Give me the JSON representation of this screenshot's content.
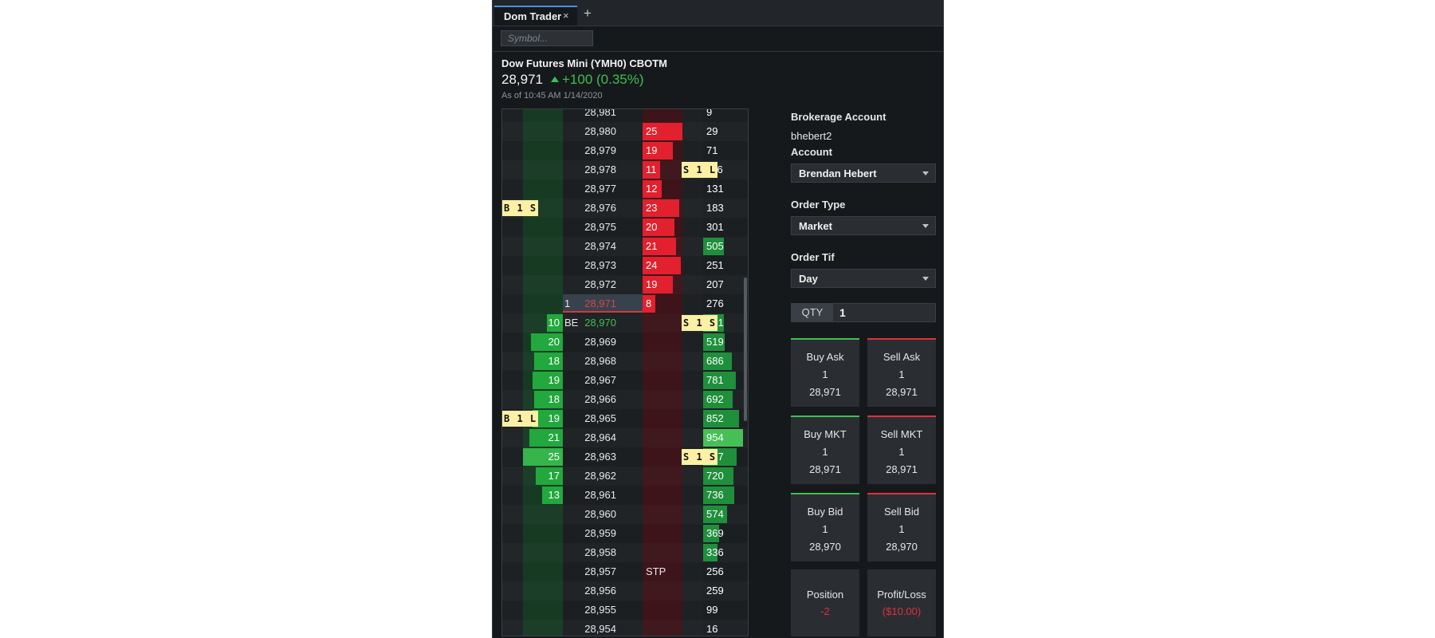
{
  "tabs": [
    {
      "label": "Dom Trader",
      "close": "×"
    }
  ],
  "tab_add": "+",
  "search": {
    "placeholder": "Symbol..."
  },
  "instrument": {
    "name": "Dow Futures Mini (YMH0) CBOTM",
    "price": "28,971",
    "change": "+100 (0.35%)",
    "as_of": "As of 10:45 AM 1/14/2020"
  },
  "colors": {
    "up": "#3fbf4f",
    "down": "#e0303a",
    "tag": "#fbf0a4"
  },
  "ladder": {
    "rows": [
      {
        "price": "28,981",
        "bid_qty": "",
        "ask_qty": "",
        "volume": "9",
        "vol_frac": 0.0,
        "ask_frac": 0
      },
      {
        "price": "28,980",
        "bid_qty": "",
        "ask_qty": "25",
        "volume": "29",
        "vol_frac": 0.0,
        "ask_frac": 1.0
      },
      {
        "price": "28,979",
        "bid_qty": "",
        "ask_qty": "19",
        "volume": "71",
        "vol_frac": 0.0,
        "ask_frac": 0.76
      },
      {
        "price": "28,978",
        "bid_qty": "",
        "ask_qty": "11",
        "volume": "116",
        "vol_frac": 0.0,
        "ask_frac": 0.44,
        "right_tag": "S 1 L"
      },
      {
        "price": "28,977",
        "bid_qty": "",
        "ask_qty": "12",
        "volume": "131",
        "vol_frac": 0.0,
        "ask_frac": 0.48
      },
      {
        "price": "28,976",
        "bid_qty": "",
        "ask_qty": "23",
        "volume": "183",
        "vol_frac": 0.0,
        "ask_frac": 0.92,
        "left_tag": "B 1 S"
      },
      {
        "price": "28,975",
        "bid_qty": "",
        "ask_qty": "20",
        "volume": "301",
        "vol_frac": 0.0,
        "ask_frac": 0.8
      },
      {
        "price": "28,974",
        "bid_qty": "",
        "ask_qty": "21",
        "volume": "505",
        "vol_frac": 0.52,
        "ask_frac": 0.84
      },
      {
        "price": "28,973",
        "bid_qty": "",
        "ask_qty": "24",
        "volume": "251",
        "vol_frac": 0.0,
        "ask_frac": 0.96
      },
      {
        "price": "28,972",
        "bid_qty": "",
        "ask_qty": "19",
        "volume": "207",
        "vol_frac": 0.0,
        "ask_frac": 0.76
      },
      {
        "price": "28,971",
        "bid_qty": "",
        "ask_qty": "8",
        "volume": "276",
        "vol_frac": 0.0,
        "ask_frac": 0.32,
        "position_qty": "1",
        "current": true
      },
      {
        "price": "28,970",
        "bid_qty": "10",
        "ask_qty": "",
        "volume": "501",
        "vol_frac": 0.52,
        "bid_frac": 0.4,
        "marker": "BE",
        "last": true,
        "right_tag": "S 1 S"
      },
      {
        "price": "28,969",
        "bid_qty": "20",
        "ask_qty": "",
        "volume": "519",
        "vol_frac": 0.54,
        "bid_frac": 0.8
      },
      {
        "price": "28,968",
        "bid_qty": "18",
        "ask_qty": "",
        "volume": "686",
        "vol_frac": 0.72,
        "bid_frac": 0.72
      },
      {
        "price": "28,967",
        "bid_qty": "19",
        "ask_qty": "",
        "volume": "781",
        "vol_frac": 0.82,
        "bid_frac": 0.76
      },
      {
        "price": "28,966",
        "bid_qty": "18",
        "ask_qty": "",
        "volume": "692",
        "vol_frac": 0.73,
        "bid_frac": 0.72
      },
      {
        "price": "28,965",
        "bid_qty": "19",
        "ask_qty": "",
        "volume": "852",
        "vol_frac": 0.89,
        "bid_frac": 0.76,
        "left_tag": "B 1 L"
      },
      {
        "price": "28,964",
        "bid_qty": "21",
        "ask_qty": "",
        "volume": "954",
        "vol_frac": 1.0,
        "bid_frac": 0.84
      },
      {
        "price": "28,963",
        "bid_qty": "25",
        "ask_qty": "",
        "volume": "797",
        "vol_frac": 0.84,
        "bid_frac": 1.0,
        "right_tag": "S 1 S"
      },
      {
        "price": "28,962",
        "bid_qty": "17",
        "ask_qty": "",
        "volume": "720",
        "vol_frac": 0.75,
        "bid_frac": 0.68
      },
      {
        "price": "28,961",
        "bid_qty": "13",
        "ask_qty": "",
        "volume": "736",
        "vol_frac": 0.77,
        "bid_frac": 0.52
      },
      {
        "price": "28,960",
        "bid_qty": "",
        "ask_qty": "",
        "volume": "574",
        "vol_frac": 0.6
      },
      {
        "price": "28,959",
        "bid_qty": "",
        "ask_qty": "",
        "volume": "369",
        "vol_frac": 0.39
      },
      {
        "price": "28,958",
        "bid_qty": "",
        "ask_qty": "",
        "volume": "336",
        "vol_frac": 0.35
      },
      {
        "price": "28,957",
        "bid_qty": "",
        "ask_qty": "",
        "volume": "256",
        "vol_frac": 0.0,
        "stop": "STP"
      },
      {
        "price": "28,956",
        "bid_qty": "",
        "ask_qty": "",
        "volume": "259",
        "vol_frac": 0.0
      },
      {
        "price": "28,955",
        "bid_qty": "",
        "ask_qty": "",
        "volume": "99",
        "vol_frac": 0.0
      },
      {
        "price": "28,954",
        "bid_qty": "",
        "ask_qty": "",
        "volume": "16",
        "vol_frac": 0.0
      }
    ]
  },
  "panel": {
    "brokerage_label": "Brokerage Account",
    "brokerage_value": "bhebert2",
    "account_label": "Account",
    "account_value": "Brendan Hebert",
    "order_type_label": "Order Type",
    "order_type_value": "Market",
    "order_tif_label": "Order Tif",
    "order_tif_value": "Day",
    "qty_label": "QTY",
    "qty_value": "1"
  },
  "buttons": {
    "buy_ask": {
      "title": "Buy Ask",
      "qty": "1",
      "price": "28,971"
    },
    "sell_ask": {
      "title": "Sell Ask",
      "qty": "1",
      "price": "28,971"
    },
    "buy_mkt": {
      "title": "Buy MKT",
      "qty": "1",
      "price": "28,971"
    },
    "sell_mkt": {
      "title": "Sell MKT",
      "qty": "1",
      "price": "28,971"
    },
    "buy_bid": {
      "title": "Buy Bid",
      "qty": "1",
      "price": "28,970"
    },
    "sell_bid": {
      "title": "Sell Bid",
      "qty": "1",
      "price": "28,970"
    }
  },
  "stats": {
    "position_label": "Position",
    "position_value": "-2",
    "pnl_label": "Profit/Loss",
    "pnl_value": "($10.00)"
  }
}
